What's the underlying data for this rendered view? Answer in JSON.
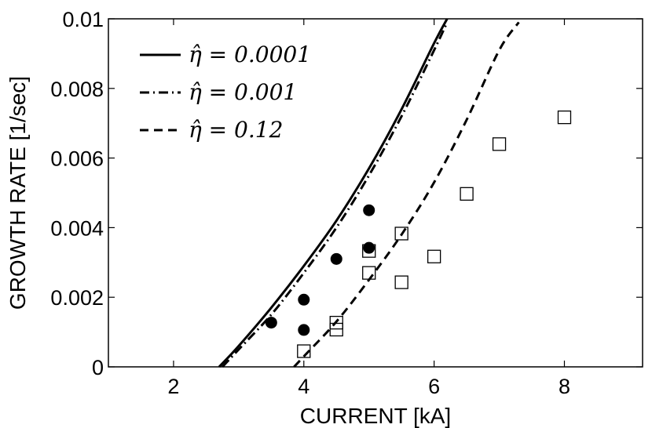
{
  "chart_data": {
    "type": "scatter",
    "title": "",
    "xlabel": "CURRENT [kA]",
    "ylabel": "GROWTH RATE [1/sec]",
    "xlim": [
      1,
      9.2
    ],
    "ylim": [
      0,
      0.01
    ],
    "xticks": [
      2,
      4,
      6,
      8
    ],
    "xtick_labels": [
      "2",
      "4",
      "6",
      "8"
    ],
    "yticks": [
      0,
      0.002,
      0.004,
      0.006,
      0.008,
      0.01
    ],
    "ytick_labels": [
      "0",
      "0.002",
      "0.004",
      "0.006",
      "0.008",
      "0.01"
    ],
    "grid": false,
    "legend_position": "top-left",
    "curves": [
      {
        "name": "η̂ = 0.0001",
        "style": "solid",
        "color": "#000000",
        "x": [
          2.7,
          3.0,
          3.5,
          4.0,
          4.5,
          5.0,
          5.5,
          6.0,
          6.2
        ],
        "y": [
          0.0,
          0.0006,
          0.0017,
          0.0029,
          0.0042,
          0.0057,
          0.0074,
          0.0093,
          0.01
        ]
      },
      {
        "name": "η̂ = 0.001",
        "style": "dashdot",
        "color": "#000000",
        "x": [
          2.75,
          3.0,
          3.5,
          4.0,
          4.5,
          5.0,
          5.5,
          6.0,
          6.2
        ],
        "y": [
          0.0,
          0.0005,
          0.0015,
          0.0027,
          0.004,
          0.0055,
          0.0072,
          0.0091,
          0.0099
        ]
      },
      {
        "name": "η̂ = 0.12",
        "style": "dashed",
        "color": "#000000",
        "x": [
          3.85,
          4.0,
          4.5,
          5.0,
          5.5,
          6.0,
          6.5,
          7.0,
          7.3
        ],
        "y": [
          0.0,
          0.0003,
          0.0013,
          0.0025,
          0.0038,
          0.0053,
          0.0071,
          0.0091,
          0.0099
        ]
      }
    ],
    "markers": [
      {
        "marker": "filled-circle",
        "points": [
          [
            3.5,
            0.00127
          ],
          [
            4.0,
            0.00193
          ],
          [
            4.0,
            0.00106
          ],
          [
            4.5,
            0.0031
          ],
          [
            5.0,
            0.0045
          ],
          [
            5.0,
            0.00342
          ]
        ]
      },
      {
        "marker": "open-square",
        "points": [
          [
            4.0,
            0.00045
          ],
          [
            4.5,
            0.00127
          ],
          [
            4.5,
            0.00107
          ],
          [
            5.0,
            0.00333
          ],
          [
            5.0,
            0.0027
          ],
          [
            5.5,
            0.00383
          ],
          [
            5.5,
            0.00243
          ],
          [
            6.0,
            0.00317
          ],
          [
            6.5,
            0.00497
          ],
          [
            7.0,
            0.0064
          ],
          [
            8.0,
            0.00717
          ]
        ]
      }
    ],
    "legend": [
      {
        "label": "η̂ = 0.0001",
        "style": "solid"
      },
      {
        "label": "η̂ = 0.001",
        "style": "dashdot"
      },
      {
        "label": "η̂ = 0.12",
        "style": "dashed"
      }
    ]
  }
}
